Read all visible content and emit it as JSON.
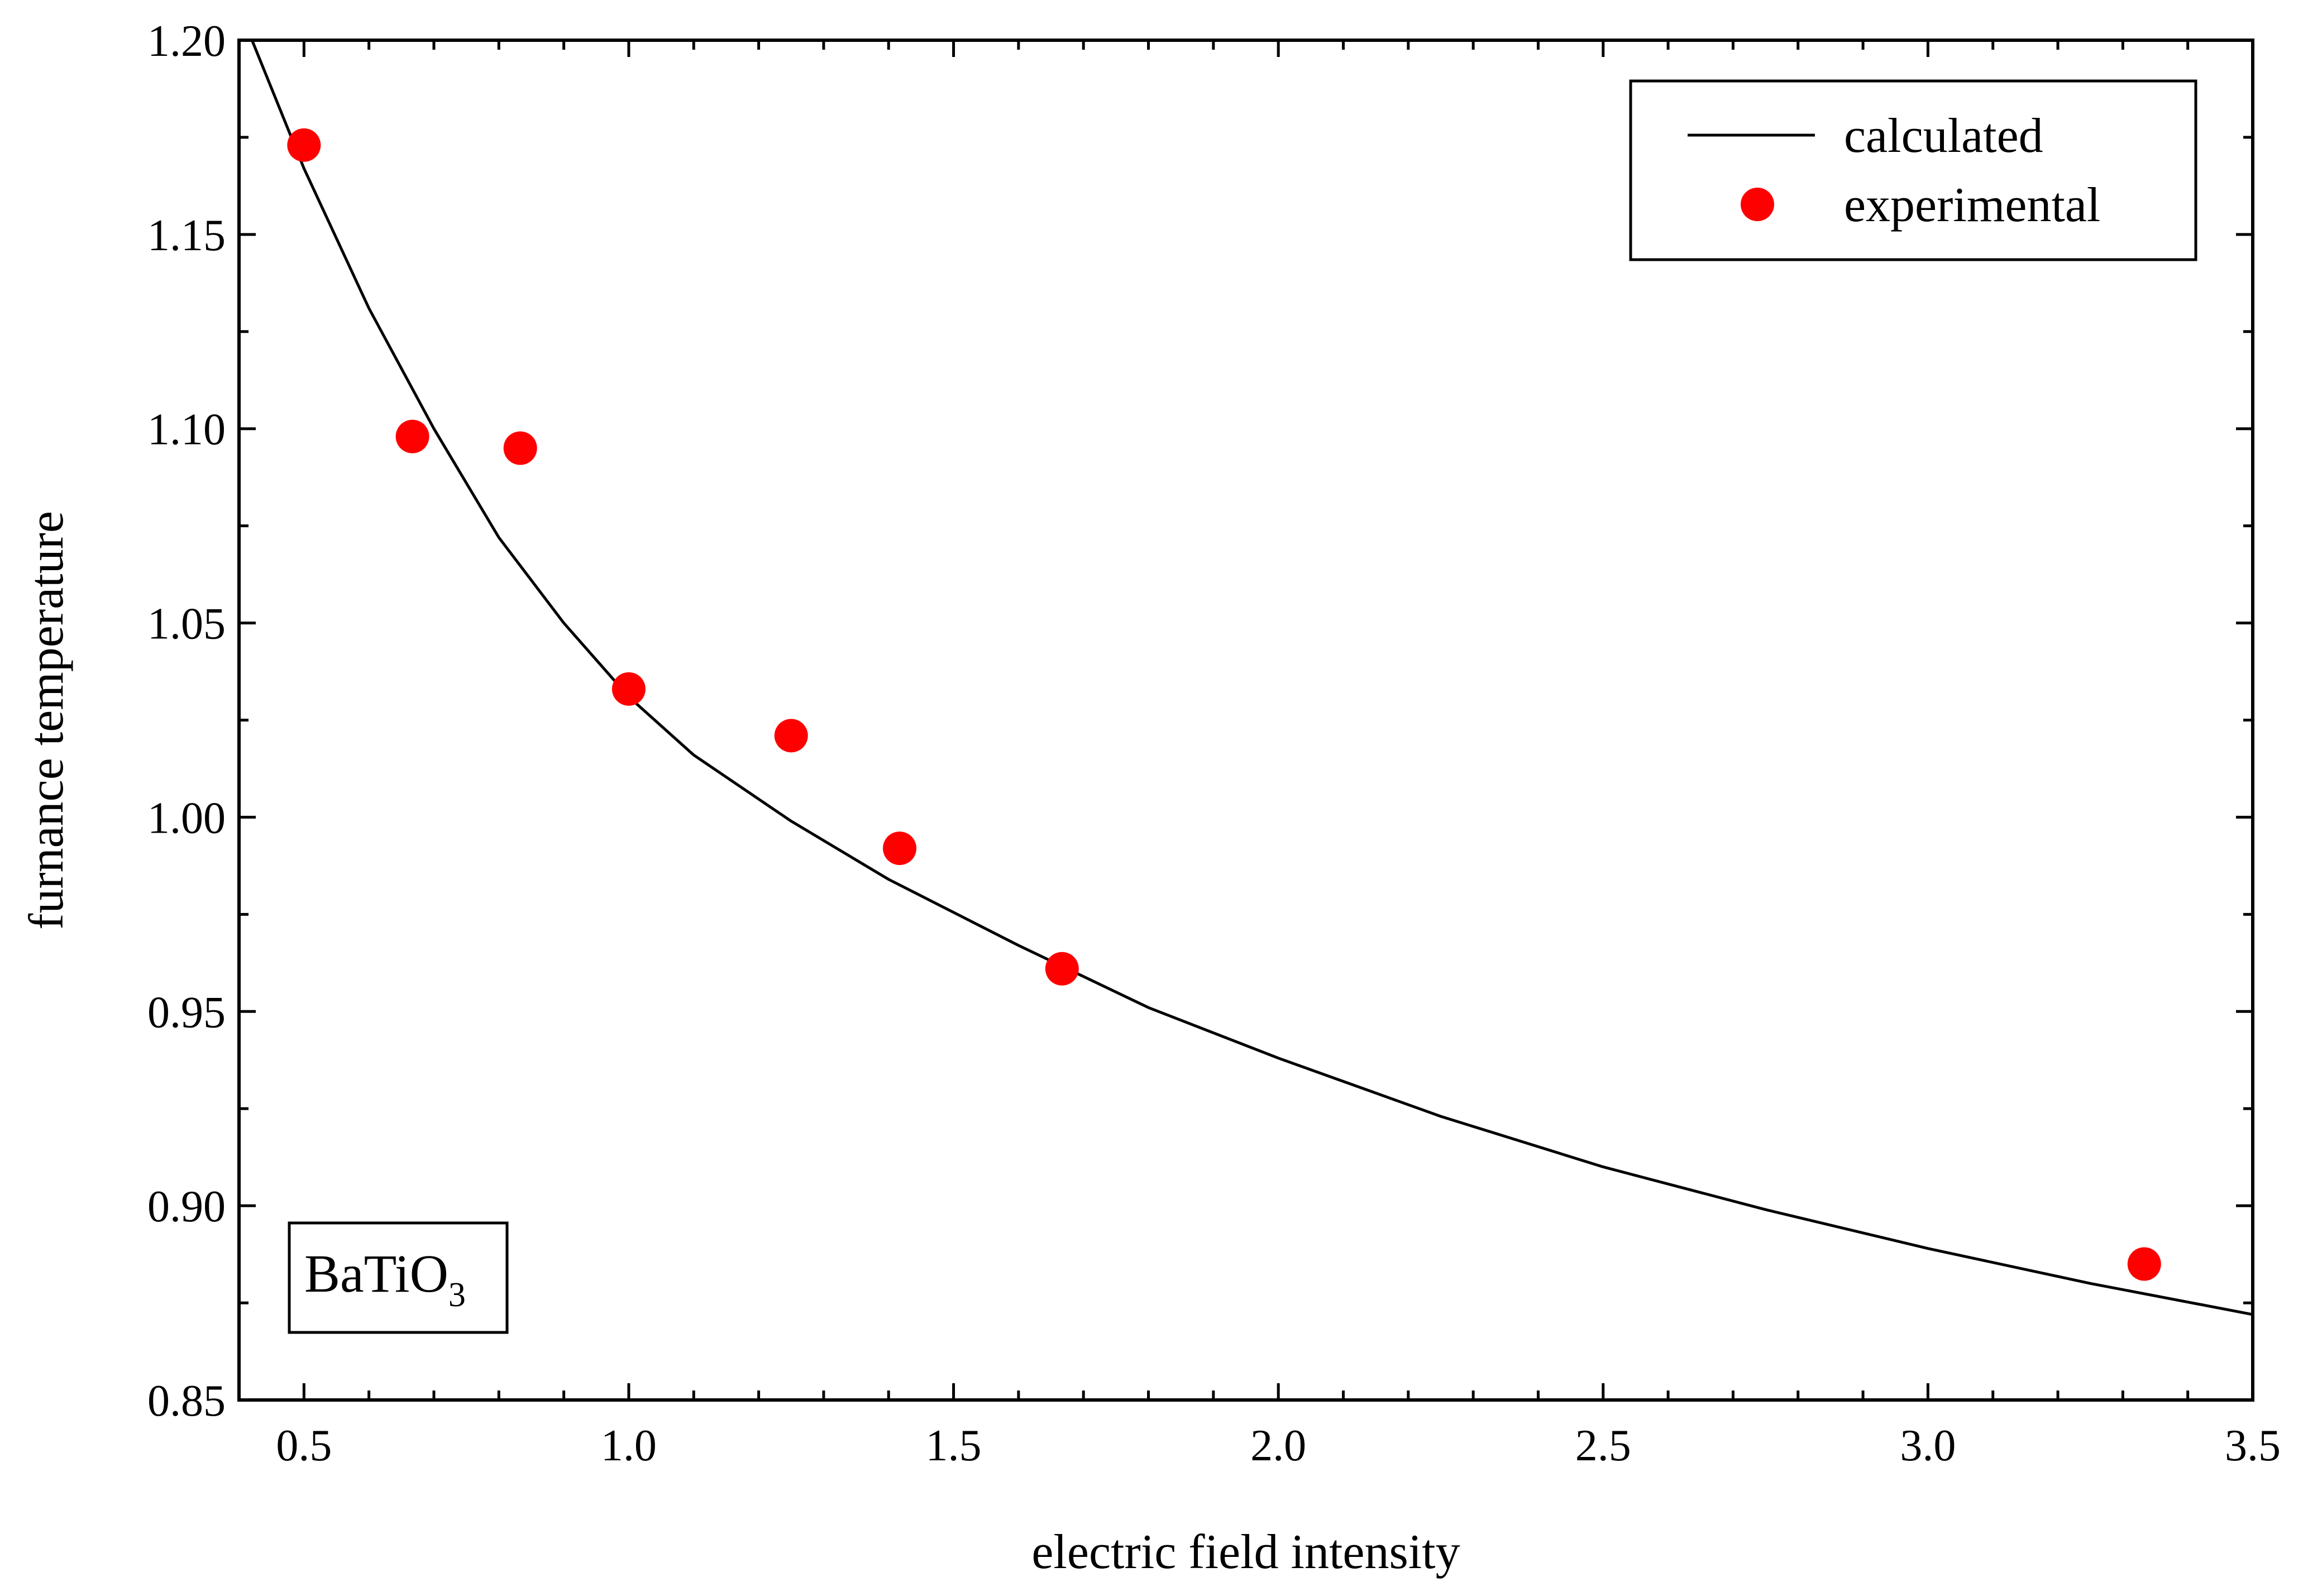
{
  "chart_data": {
    "type": "scatter",
    "title": "",
    "xlabel": "electric field intensity",
    "ylabel": "furnance temperature",
    "xlim": [
      0.4,
      3.5
    ],
    "ylim": [
      0.85,
      1.2
    ],
    "xticks": [
      0.5,
      1.0,
      1.5,
      2.0,
      2.5,
      3.0,
      3.5
    ],
    "xtick_labels": [
      "0.5",
      "1.0",
      "1.5",
      "2.0",
      "2.5",
      "3.0",
      "3.5"
    ],
    "yticks": [
      0.85,
      0.9,
      0.95,
      1.0,
      1.05,
      1.1,
      1.15,
      1.2
    ],
    "ytick_labels": [
      "0.85",
      "0.90",
      "0.95",
      "1.00",
      "1.05",
      "1.10",
      "1.15",
      "1.20"
    ],
    "grid": false,
    "legend_position": "top-right",
    "series": [
      {
        "name": "calculated",
        "kind": "line",
        "color": "#000000",
        "x": [
          0.42,
          0.5,
          0.6,
          0.7,
          0.8,
          0.9,
          1.0,
          1.1,
          1.25,
          1.4,
          1.6,
          1.8,
          2.0,
          2.25,
          2.5,
          2.75,
          3.0,
          3.25,
          3.5
        ],
        "y": [
          1.2,
          1.167,
          1.131,
          1.1,
          1.072,
          1.05,
          1.031,
          1.016,
          0.999,
          0.984,
          0.967,
          0.951,
          0.938,
          0.923,
          0.91,
          0.899,
          0.889,
          0.88,
          0.872
        ]
      },
      {
        "name": "experimental",
        "kind": "scatter",
        "color": "#ff0000",
        "x": [
          0.5,
          0.667,
          0.833,
          1.0,
          1.25,
          1.417,
          1.667,
          3.333
        ],
        "y": [
          1.173,
          1.098,
          1.095,
          1.033,
          1.021,
          0.992,
          0.961,
          0.885
        ]
      }
    ],
    "annotation": {
      "text_main": "BaTiO",
      "text_sub": "3",
      "position": "bottom-left"
    }
  }
}
